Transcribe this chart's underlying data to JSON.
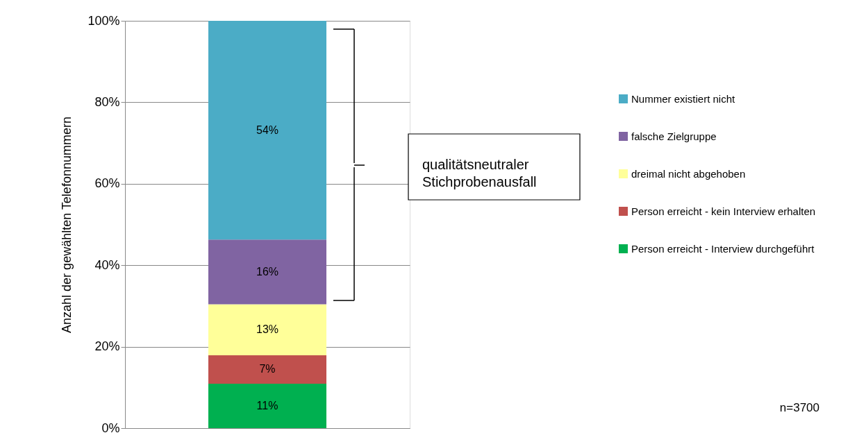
{
  "chart_data": {
    "type": "bar",
    "stacked": true,
    "ylabel": "Anzahl der gewählten Telefonnummern",
    "categories": [
      null
    ],
    "series": [
      {
        "name": "Person erreicht - Interview durchgeführt",
        "color": "#00b050",
        "values": [
          10.9
        ],
        "value_labels": [
          "11%"
        ]
      },
      {
        "name": "Person erreicht - kein Interview erhalten",
        "color": "#c0504d",
        "values": [
          7.0
        ],
        "value_labels": [
          "7%"
        ]
      },
      {
        "name": "dreimal nicht abgehoben",
        "color": "#ffff99",
        "values": [
          12.5
        ],
        "value_labels": [
          "13%"
        ]
      },
      {
        "name": "falsche Zielgruppe",
        "color": "#8064a2",
        "values": [
          15.9
        ],
        "value_labels": [
          "16%"
        ]
      },
      {
        "name": "Nummer existiert nicht",
        "color": "#4bacc6",
        "values": [
          53.7
        ],
        "value_labels": [
          "54%"
        ]
      }
    ],
    "ylim": [
      0,
      100
    ],
    "yticks": [
      {
        "value": 0,
        "label": "0%"
      },
      {
        "value": 20,
        "label": "20%"
      },
      {
        "value": 40,
        "label": "40%"
      },
      {
        "value": 60,
        "label": "60%"
      },
      {
        "value": 80,
        "label": "80%"
      },
      {
        "value": 100,
        "label": "100%"
      }
    ],
    "grid": "y",
    "legend": "right",
    "annotations": [
      "qualitätsneutraler\nStichprobenausfall",
      "n=3700"
    ]
  }
}
